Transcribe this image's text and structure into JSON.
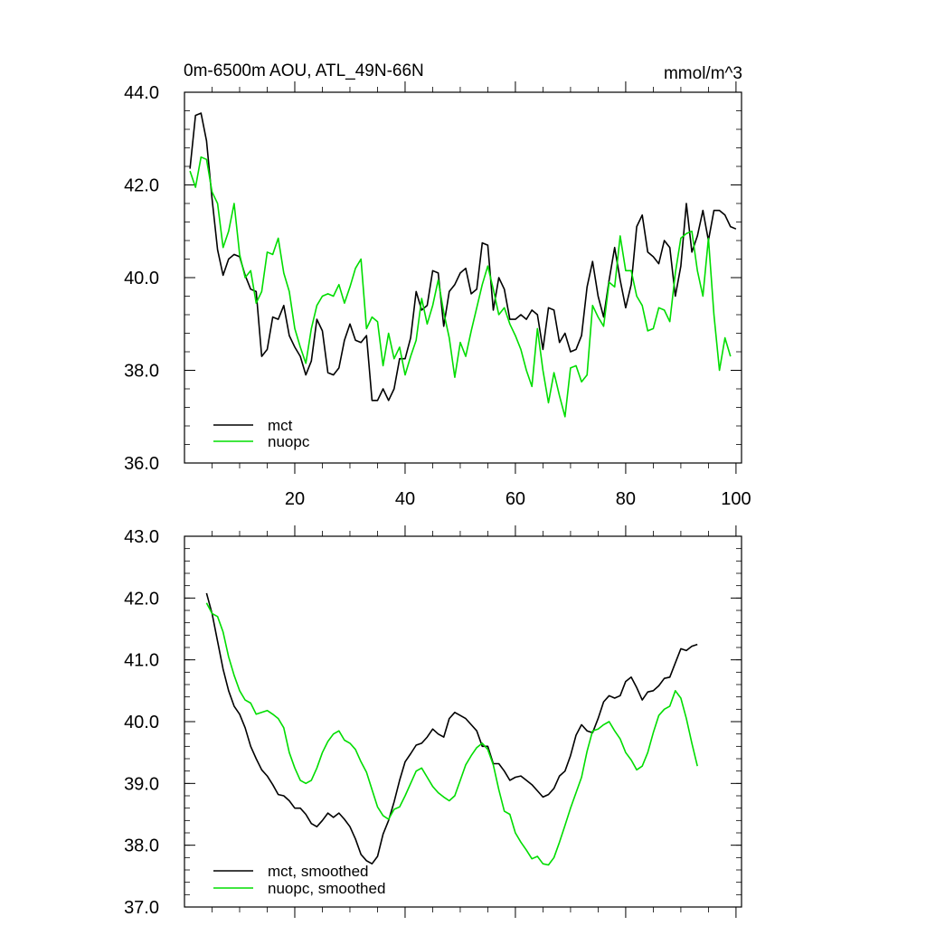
{
  "chart_data": [
    {
      "type": "line",
      "title": "0m-6500m AOU, ATL_49N-66N",
      "units": "mmol/m^3",
      "xlabel": "",
      "ylabel": "",
      "xlim": [
        0,
        101
      ],
      "ylim": [
        36.0,
        44.0
      ],
      "xticks": [
        20,
        40,
        60,
        80,
        100
      ],
      "xticklabels": [
        "20",
        "40",
        "60",
        "80",
        "100"
      ],
      "yticks": [
        36.0,
        38.0,
        40.0,
        42.0,
        44.0
      ],
      "yticklabels": [
        "36.0",
        "38.0",
        "40.0",
        "42.0",
        "44.0"
      ],
      "legend": "bottom-left",
      "x_start": 1,
      "series": [
        {
          "name": "mct",
          "color": "#000000",
          "values": [
            42.35,
            43.5,
            43.55,
            42.95,
            41.7,
            40.6,
            40.05,
            40.4,
            40.5,
            40.45,
            40.05,
            39.75,
            39.7,
            38.3,
            38.45,
            39.15,
            39.1,
            39.4,
            38.75,
            38.5,
            38.3,
            37.9,
            38.2,
            39.1,
            38.85,
            37.95,
            37.9,
            38.05,
            38.65,
            39.0,
            38.65,
            38.6,
            38.75,
            37.35,
            37.35,
            37.6,
            37.35,
            37.6,
            38.25,
            38.25,
            38.7,
            39.7,
            39.3,
            39.4,
            40.15,
            40.1,
            38.95,
            39.7,
            39.85,
            40.1,
            40.2,
            39.65,
            39.75,
            40.75,
            40.7,
            39.3,
            40.0,
            39.75,
            39.1,
            39.1,
            39.2,
            39.1,
            39.3,
            39.2,
            38.45,
            39.35,
            39.3,
            38.6,
            38.8,
            38.4,
            38.45,
            38.75,
            39.8,
            40.35,
            39.6,
            39.15,
            39.95,
            40.65,
            39.95,
            39.35,
            39.85,
            41.1,
            41.35,
            40.55,
            40.45,
            40.3,
            40.8,
            40.65,
            39.6,
            40.25,
            41.6,
            40.55,
            40.9,
            41.45,
            40.8,
            41.45,
            41.45,
            41.35,
            41.1,
            41.05
          ]
        },
        {
          "name": "nuopc",
          "color": "#00dd00",
          "values": [
            42.3,
            41.95,
            42.6,
            42.55,
            41.85,
            41.6,
            40.65,
            41.0,
            41.6,
            40.5,
            40.0,
            40.15,
            39.45,
            39.7,
            40.55,
            40.5,
            40.85,
            40.1,
            39.7,
            38.9,
            38.5,
            38.15,
            38.9,
            39.4,
            39.6,
            39.65,
            39.6,
            39.85,
            39.45,
            39.8,
            40.2,
            40.4,
            38.9,
            39.15,
            39.05,
            38.1,
            38.8,
            38.25,
            38.5,
            37.9,
            38.3,
            38.65,
            39.55,
            39.0,
            39.4,
            39.95,
            39.25,
            38.7,
            37.85,
            38.6,
            38.3,
            38.85,
            39.35,
            39.85,
            40.25,
            39.75,
            39.2,
            39.35,
            39.0,
            38.75,
            38.45,
            38.0,
            37.65,
            38.9,
            38.0,
            37.3,
            37.95,
            37.45,
            37.0,
            38.05,
            38.1,
            37.75,
            37.9,
            39.4,
            39.15,
            38.95,
            39.9,
            39.8,
            40.9,
            40.15,
            40.15,
            39.6,
            39.4,
            38.85,
            38.9,
            39.35,
            39.3,
            39.05,
            40.1,
            40.85,
            40.95,
            41.0,
            40.15,
            39.6,
            40.85,
            39.2,
            38.0,
            38.7,
            38.3
          ]
        }
      ]
    },
    {
      "type": "line",
      "title": "",
      "xlabel": "",
      "ylabel": "",
      "xlim": [
        0,
        101
      ],
      "ylim": [
        37.0,
        43.0
      ],
      "xticks": [
        20,
        40,
        60,
        80,
        100
      ],
      "yticks": [
        37.0,
        38.0,
        39.0,
        40.0,
        41.0,
        42.0,
        43.0
      ],
      "yticklabels": [
        "37.0",
        "38.0",
        "39.0",
        "40.0",
        "41.0",
        "42.0",
        "43.0"
      ],
      "legend": "bottom-left",
      "x_start": 4,
      "series": [
        {
          "name": "mct, smoothed",
          "color": "#000000",
          "values": [
            42.08,
            41.75,
            41.3,
            40.85,
            40.5,
            40.25,
            40.12,
            39.9,
            39.6,
            39.4,
            39.22,
            39.12,
            38.98,
            38.82,
            38.8,
            38.72,
            38.6,
            38.6,
            38.5,
            38.35,
            38.3,
            38.4,
            38.52,
            38.45,
            38.52,
            38.42,
            38.3,
            38.1,
            37.85,
            37.75,
            37.7,
            37.82,
            38.18,
            38.4,
            38.7,
            39.05,
            39.35,
            39.48,
            39.62,
            39.65,
            39.75,
            39.88,
            39.8,
            39.75,
            40.05,
            40.15,
            40.1,
            40.05,
            39.95,
            39.85,
            39.6,
            39.6,
            39.32,
            39.32,
            39.2,
            39.05,
            39.1,
            39.12,
            39.05,
            38.98,
            38.88,
            38.78,
            38.82,
            38.92,
            39.12,
            39.2,
            39.45,
            39.78,
            39.95,
            39.85,
            39.82,
            40.05,
            40.32,
            40.42,
            40.38,
            40.42,
            40.65,
            40.72,
            40.55,
            40.35,
            40.48,
            40.5,
            40.58,
            40.7,
            40.72,
            40.95,
            41.18,
            41.15,
            41.22,
            41.25
          ]
        },
        {
          "name": "nuopc, smoothed",
          "color": "#00dd00",
          "values": [
            41.92,
            41.75,
            41.7,
            41.45,
            41.05,
            40.75,
            40.5,
            40.35,
            40.3,
            40.12,
            40.15,
            40.18,
            40.12,
            40.05,
            39.9,
            39.5,
            39.25,
            39.05,
            39.0,
            39.05,
            39.25,
            39.5,
            39.68,
            39.8,
            39.85,
            39.7,
            39.65,
            39.55,
            39.35,
            39.18,
            38.9,
            38.62,
            38.48,
            38.42,
            38.58,
            38.62,
            38.8,
            39.0,
            39.2,
            39.25,
            39.1,
            38.95,
            38.85,
            38.78,
            38.72,
            38.8,
            39.05,
            39.3,
            39.45,
            39.58,
            39.65,
            39.55,
            39.3,
            38.9,
            38.55,
            38.5,
            38.2,
            38.05,
            37.92,
            37.78,
            37.82,
            37.7,
            37.68,
            37.8,
            38.05,
            38.32,
            38.6,
            38.85,
            39.1,
            39.52,
            39.85,
            39.88,
            39.95,
            40.0,
            39.85,
            39.72,
            39.5,
            39.38,
            39.22,
            39.28,
            39.5,
            39.82,
            40.1,
            40.2,
            40.25,
            40.5,
            40.38,
            40.05,
            39.65,
            39.28
          ]
        }
      ]
    }
  ]
}
